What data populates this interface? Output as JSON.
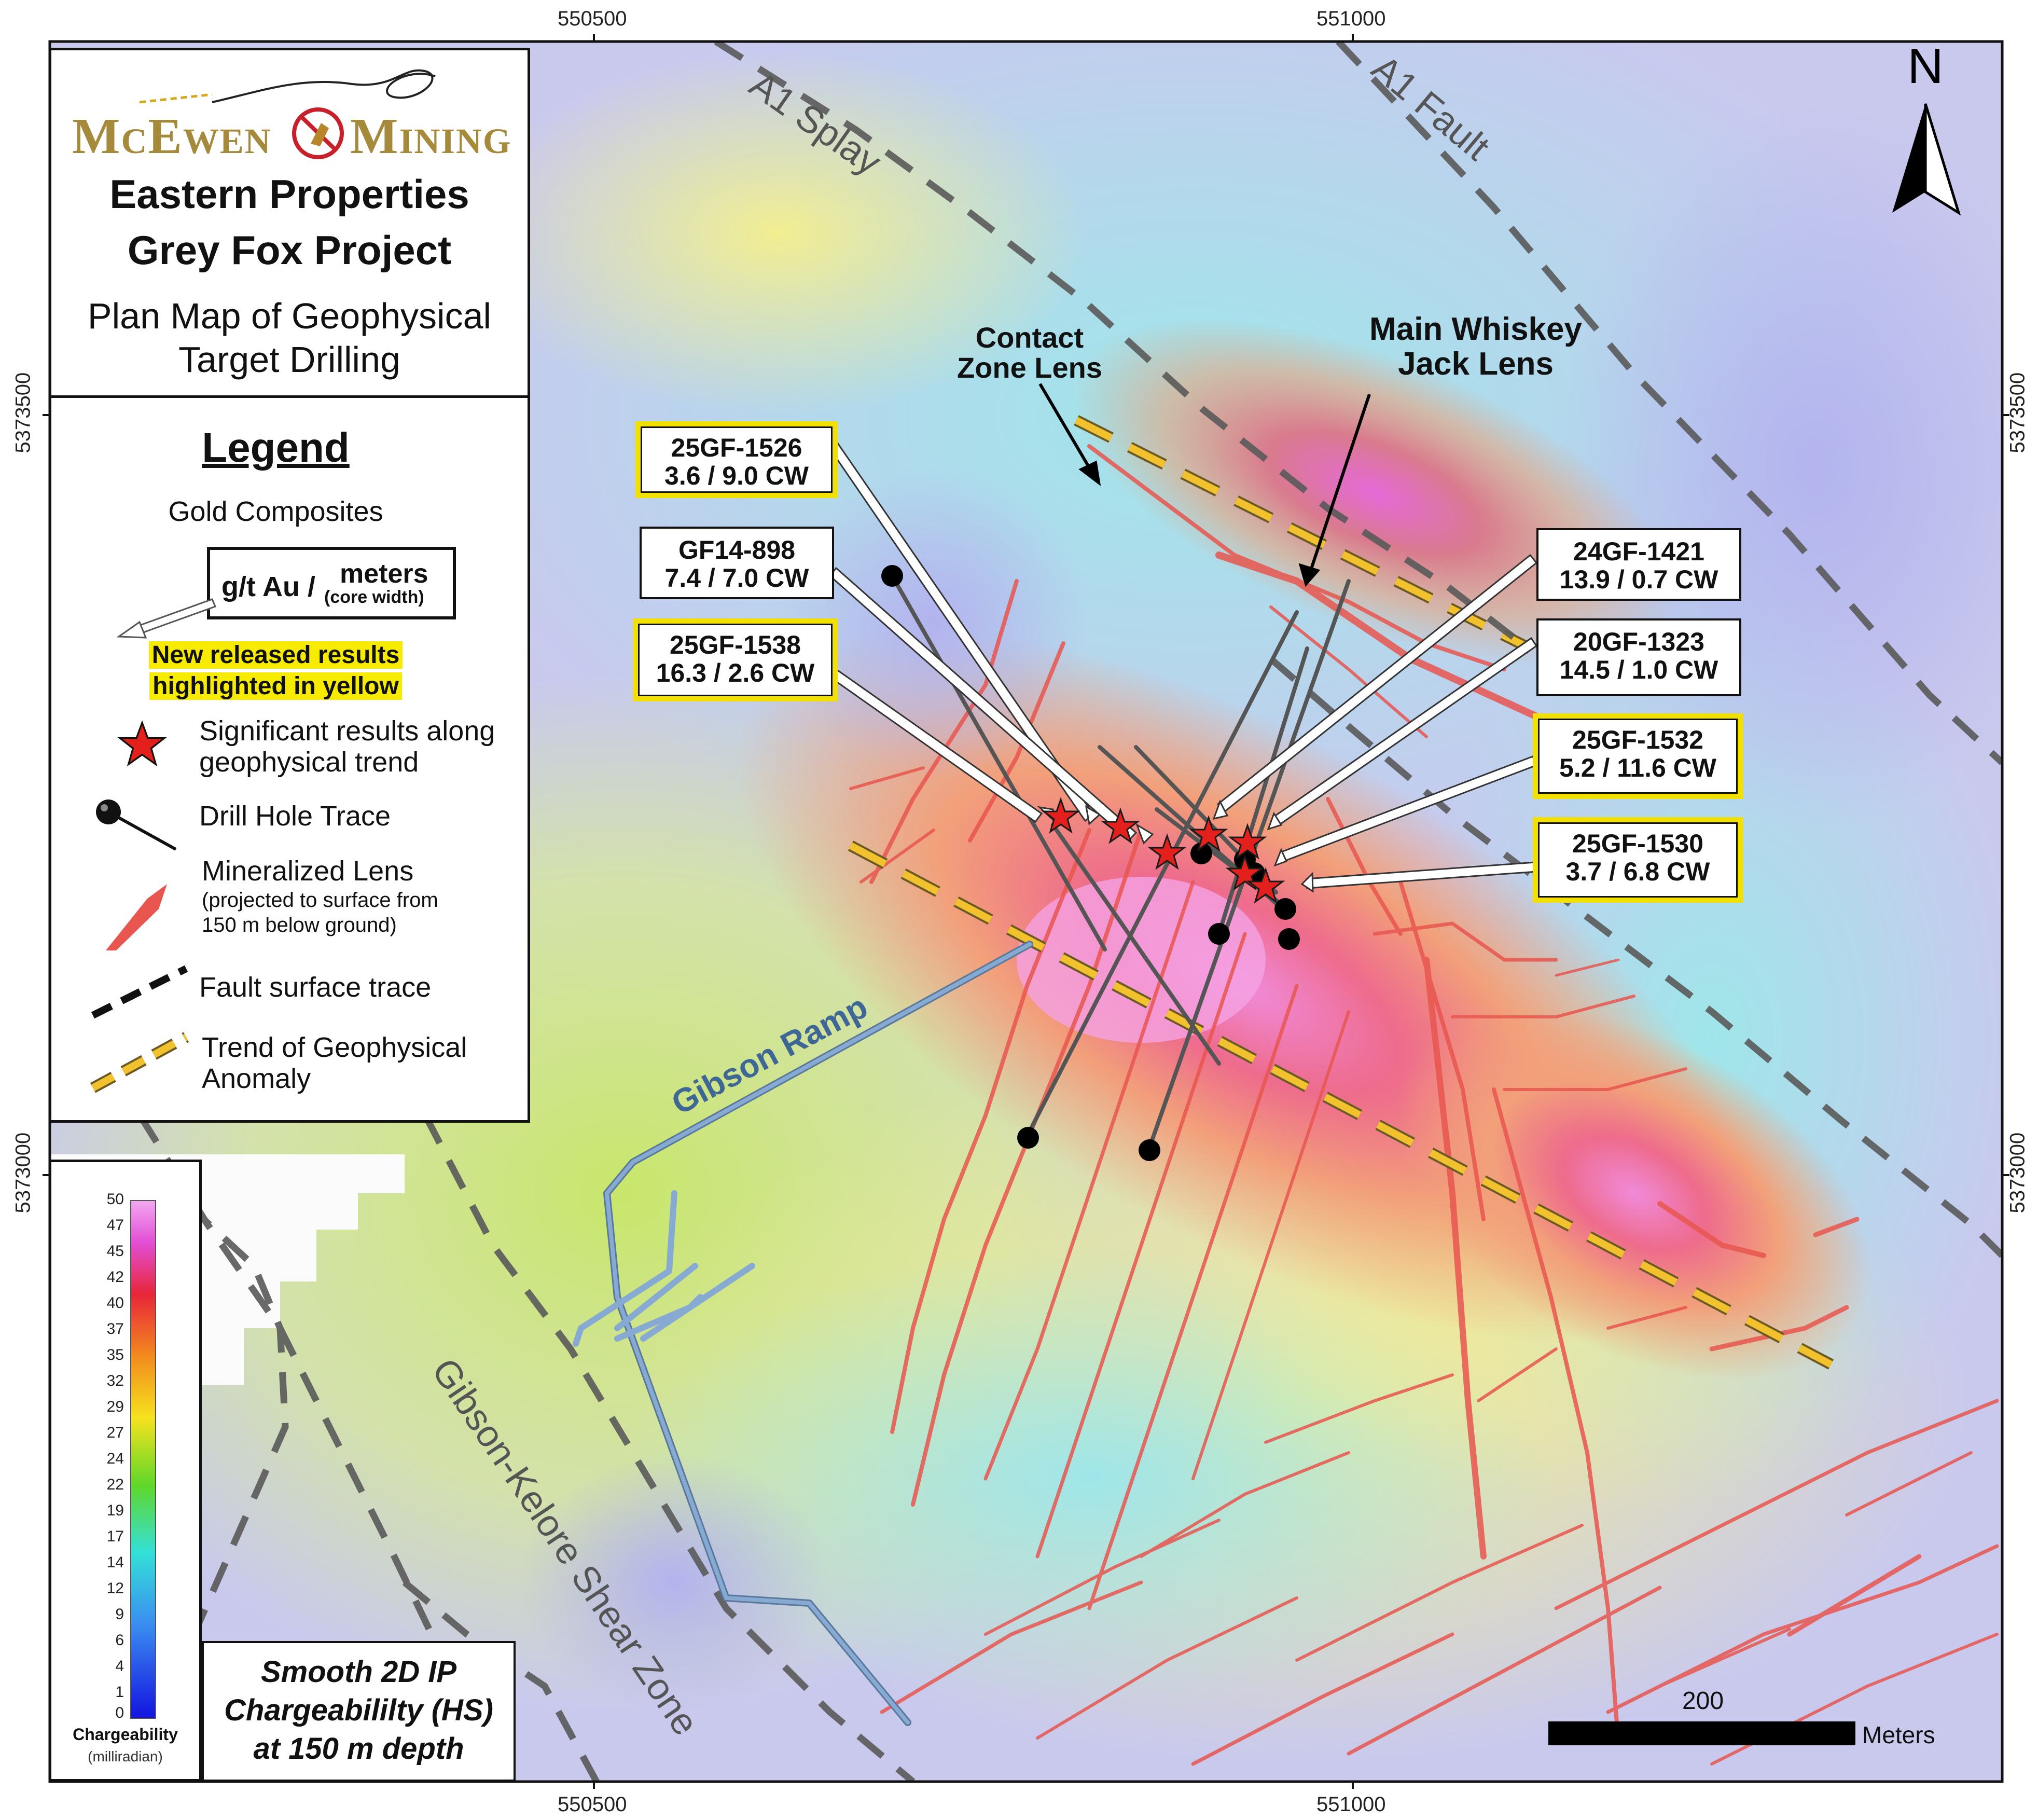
{
  "title_block": {
    "company_left": "McEwen",
    "company_right": "Mining",
    "line1": "Eastern Properties",
    "line2": "Grey Fox Project",
    "line3": "Plan Map of Geophysical",
    "line4": "Target Drilling"
  },
  "legend": {
    "heading": "Legend",
    "gold_composites": "Gold Composites",
    "box_left": "g/t Au /",
    "box_right_top": "meters",
    "box_right_bottom": "(core width)",
    "highlight_line1": "New released results",
    "highlight_line2": "highlighted in yellow",
    "items": [
      {
        "label1": "Significant results along",
        "label2": "geophysical trend"
      },
      {
        "label1": "Drill Hole Trace",
        "label2": ""
      },
      {
        "label1": "Mineralized Lens",
        "label2": "(projected to surface from",
        "label3": "150 m below ground)"
      },
      {
        "label1": "Fault surface trace",
        "label2": ""
      },
      {
        "label1": "Trend of Geophysical",
        "label2": "Anomaly"
      }
    ]
  },
  "colorbar": {
    "ticks": [
      "50",
      "47",
      "45",
      "42",
      "40",
      "37",
      "35",
      "32",
      "29",
      "27",
      "24",
      "22",
      "19",
      "17",
      "14",
      "12",
      "9",
      "6",
      "4",
      "1",
      "0"
    ],
    "title": "Chargeability",
    "unit": "(milliradian)"
  },
  "caption": {
    "line1": "Smooth 2D IP",
    "line2": "Chargeabililty (HS)",
    "line3": "at 150 m depth"
  },
  "coords": {
    "top_left": "550500",
    "top_right": "551000",
    "bottom_left": "550500",
    "bottom_right": "551000",
    "left_upper": "5373500",
    "left_lower": "5373000",
    "right_upper": "5373500",
    "right_lower": "5373000"
  },
  "north": "N",
  "scalebar": {
    "value": "200",
    "unit": "Meters"
  },
  "labels": {
    "a1_splay": "A1 Splay",
    "a1_fault": "A1 Fault",
    "gibson_ramp": "Gibson Ramp",
    "shear_zone": "Gibson-Kelore Shear Zone",
    "contact_zone_1": "Contact",
    "contact_zone_2": "Zone Lens",
    "main_whiskey_1": "Main Whiskey",
    "main_whiskey_2": "Jack Lens"
  },
  "callouts": [
    {
      "id": "25GF-1526",
      "value": "3.6 / 9.0 CW",
      "highlight": true
    },
    {
      "id": "GF14-898",
      "value": "7.4 / 7.0 CW",
      "highlight": false
    },
    {
      "id": "25GF-1538",
      "value": "16.3 / 2.6 CW",
      "highlight": true
    },
    {
      "id": "24GF-1421",
      "value": "13.9 / 0.7 CW",
      "highlight": false
    },
    {
      "id": "20GF-1323",
      "value": "14.5 / 1.0 CW",
      "highlight": false
    },
    {
      "id": "25GF-1532",
      "value": "5.2 / 11.6 CW",
      "highlight": true
    },
    {
      "id": "25GF-1530",
      "value": "3.7 / 6.8 CW",
      "highlight": true
    }
  ],
  "colors": {
    "fault": "#5a5a5a",
    "anomaly_trend": "#f2c12e",
    "lens": "#e8564f",
    "star": "#e3201b",
    "ramp": "#6b92bd",
    "highlight_yellow": "#f7ec00"
  }
}
